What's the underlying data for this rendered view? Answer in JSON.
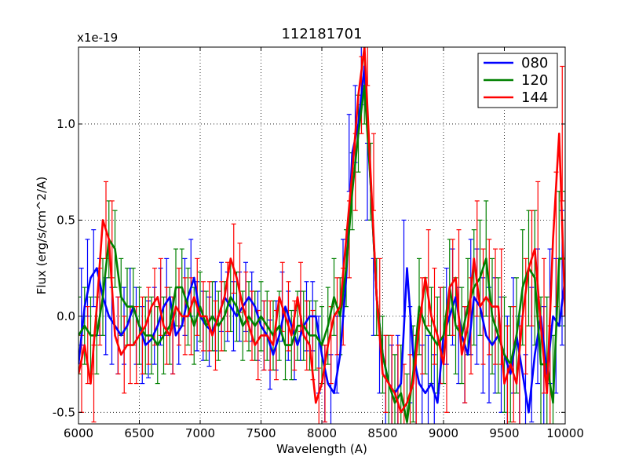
{
  "chart_data": {
    "type": "line",
    "title": "112181701",
    "xlabel": "Wavelength (A)",
    "ylabel": "Flux (erg/s/cm^2/A)",
    "y_multiplier": "x1e-19",
    "xlim": [
      6000,
      10000
    ],
    "ylim": [
      -0.56,
      1.4
    ],
    "xticks": [
      6000,
      6500,
      7000,
      7500,
      8000,
      8500,
      9000,
      9500,
      10000
    ],
    "xtick_labels": [
      "6000",
      "6500",
      "7000",
      "7500",
      "8000",
      "8500",
      "9000",
      "9500",
      "10000"
    ],
    "yticks": [
      -0.5,
      0.0,
      0.5,
      1.0
    ],
    "ytick_labels": [
      "-0.5",
      "0.0",
      "0.5",
      "1.0"
    ],
    "grid": true,
    "legend_position": "top-right",
    "x": [
      6000,
      6050,
      6100,
      6150,
      6200,
      6250,
      6300,
      6350,
      6400,
      6450,
      6500,
      6550,
      6600,
      6650,
      6700,
      6750,
      6800,
      6850,
      6900,
      6950,
      7000,
      7050,
      7100,
      7150,
      7200,
      7250,
      7300,
      7350,
      7400,
      7450,
      7500,
      7550,
      7600,
      7650,
      7700,
      7750,
      7800,
      7850,
      7900,
      7950,
      8000,
      8050,
      8100,
      8150,
      8200,
      8250,
      8300,
      8350,
      8400,
      8450,
      8500,
      8550,
      8600,
      8650,
      8700,
      8750,
      8800,
      8850,
      8900,
      8950,
      9000,
      9050,
      9100,
      9150,
      9200,
      9250,
      9300,
      9350,
      9400,
      9450,
      9500,
      9550,
      9600,
      9650,
      9700,
      9750,
      9800,
      9850,
      9900,
      9950,
      10000
    ],
    "series": [
      {
        "name": "080",
        "color": "#0000ff",
        "values": [
          -0.25,
          0.05,
          0.2,
          0.25,
          0.1,
          0.0,
          -0.05,
          -0.1,
          -0.05,
          0.05,
          -0.05,
          -0.15,
          -0.12,
          -0.05,
          0.05,
          0.1,
          -0.1,
          -0.05,
          0.1,
          0.2,
          0.0,
          -0.05,
          -0.08,
          0.0,
          0.1,
          0.05,
          0.0,
          0.05,
          0.1,
          0.05,
          -0.05,
          -0.1,
          -0.2,
          -0.1,
          0.05,
          -0.05,
          -0.15,
          -0.05,
          0.0,
          0.0,
          -0.2,
          -0.35,
          -0.4,
          -0.2,
          0.2,
          0.85,
          1.0,
          1.3,
          0.7,
          0.1,
          -0.2,
          -0.35,
          -0.4,
          -0.35,
          0.25,
          -0.2,
          -0.35,
          -0.4,
          -0.35,
          -0.45,
          -0.1,
          0.0,
          0.1,
          -0.1,
          -0.2,
          0.1,
          0.05,
          -0.1,
          -0.15,
          -0.1,
          -0.2,
          -0.3,
          -0.1,
          -0.3,
          -0.5,
          -0.2,
          0.0,
          -0.3,
          0.0,
          -0.05,
          0.2
        ],
        "errors": [
          0.2,
          0.2,
          0.2,
          0.2,
          0.2,
          0.2,
          0.2,
          0.2,
          0.2,
          0.2,
          0.2,
          0.2,
          0.2,
          0.2,
          0.2,
          0.2,
          0.2,
          0.2,
          0.2,
          0.2,
          0.18,
          0.18,
          0.18,
          0.18,
          0.18,
          0.18,
          0.18,
          0.18,
          0.18,
          0.18,
          0.18,
          0.18,
          0.18,
          0.18,
          0.18,
          0.18,
          0.18,
          0.18,
          0.18,
          0.18,
          0.2,
          0.2,
          0.2,
          0.2,
          0.2,
          0.2,
          0.2,
          0.2,
          0.2,
          0.2,
          0.2,
          0.25,
          0.25,
          0.25,
          0.25,
          0.25,
          0.25,
          0.25,
          0.25,
          0.25,
          0.25,
          0.25,
          0.25,
          0.25,
          0.25,
          0.3,
          0.3,
          0.3,
          0.3,
          0.3,
          0.3,
          0.3,
          0.3,
          0.3,
          0.3,
          0.35,
          0.35,
          0.35,
          0.35,
          0.35,
          0.35
        ]
      },
      {
        "name": "120",
        "color": "#008000",
        "values": [
          -0.1,
          -0.05,
          -0.1,
          -0.1,
          0.1,
          0.4,
          0.35,
          0.1,
          0.05,
          0.05,
          -0.05,
          -0.1,
          -0.1,
          -0.15,
          -0.1,
          -0.05,
          0.15,
          0.15,
          0.05,
          -0.05,
          0.05,
          -0.05,
          0.0,
          -0.05,
          0.0,
          0.1,
          0.05,
          -0.05,
          0.0,
          -0.05,
          0.0,
          -0.05,
          -0.1,
          -0.05,
          -0.15,
          -0.15,
          -0.05,
          -0.05,
          -0.1,
          -0.1,
          -0.15,
          -0.05,
          0.1,
          0.0,
          0.25,
          0.65,
          0.95,
          1.2,
          0.7,
          0.1,
          -0.2,
          -0.35,
          -0.45,
          -0.4,
          -0.55,
          -0.3,
          0.05,
          -0.05,
          -0.1,
          -0.15,
          -0.1,
          0.15,
          -0.05,
          -0.1,
          0.05,
          0.15,
          0.2,
          0.3,
          0.0,
          -0.1,
          -0.2,
          -0.25,
          -0.1,
          0.15,
          0.25,
          0.2,
          -0.25,
          -0.25,
          -0.45,
          0.3,
          0.3
        ],
        "errors": [
          0.2,
          0.2,
          0.2,
          0.2,
          0.2,
          0.2,
          0.2,
          0.2,
          0.2,
          0.2,
          0.2,
          0.2,
          0.2,
          0.2,
          0.2,
          0.2,
          0.2,
          0.2,
          0.2,
          0.2,
          0.18,
          0.18,
          0.18,
          0.18,
          0.18,
          0.18,
          0.18,
          0.18,
          0.18,
          0.18,
          0.18,
          0.18,
          0.18,
          0.18,
          0.18,
          0.18,
          0.18,
          0.18,
          0.18,
          0.18,
          0.2,
          0.2,
          0.2,
          0.2,
          0.2,
          0.2,
          0.2,
          0.2,
          0.2,
          0.2,
          0.2,
          0.25,
          0.25,
          0.25,
          0.25,
          0.25,
          0.25,
          0.25,
          0.25,
          0.25,
          0.25,
          0.25,
          0.25,
          0.25,
          0.25,
          0.3,
          0.3,
          0.3,
          0.3,
          0.3,
          0.3,
          0.3,
          0.3,
          0.3,
          0.3,
          0.35,
          0.35,
          0.35,
          0.35,
          0.35,
          0.35
        ]
      },
      {
        "name": "144",
        "color": "#ff0000",
        "values": [
          -0.3,
          -0.15,
          -0.35,
          0.05,
          0.5,
          0.4,
          -0.1,
          -0.2,
          -0.15,
          -0.15,
          -0.1,
          -0.05,
          0.05,
          0.1,
          -0.05,
          -0.1,
          0.05,
          0.0,
          0.0,
          0.1,
          0.0,
          0.0,
          -0.1,
          0.0,
          0.1,
          0.3,
          0.2,
          0.05,
          -0.05,
          -0.15,
          -0.1,
          -0.1,
          -0.15,
          0.1,
          0.0,
          -0.1,
          0.1,
          -0.1,
          -0.15,
          -0.45,
          -0.35,
          -0.15,
          0.0,
          0.05,
          0.4,
          0.75,
          1.15,
          1.4,
          0.75,
          0.1,
          -0.3,
          -0.35,
          -0.4,
          -0.5,
          -0.45,
          -0.35,
          -0.05,
          0.2,
          0.0,
          -0.1,
          -0.25,
          0.15,
          0.2,
          -0.2,
          -0.05,
          0.3,
          0.05,
          0.1,
          0.05,
          0.05,
          -0.35,
          -0.25,
          -0.35,
          0.0,
          0.25,
          0.35,
          -0.05,
          -0.4,
          0.4,
          0.95,
          0.0
        ],
        "errors": [
          0.2,
          0.2,
          0.2,
          0.2,
          0.2,
          0.2,
          0.2,
          0.2,
          0.2,
          0.2,
          0.2,
          0.2,
          0.2,
          0.2,
          0.2,
          0.2,
          0.2,
          0.2,
          0.2,
          0.2,
          0.18,
          0.18,
          0.18,
          0.18,
          0.18,
          0.18,
          0.18,
          0.18,
          0.18,
          0.18,
          0.18,
          0.18,
          0.18,
          0.18,
          0.18,
          0.18,
          0.18,
          0.18,
          0.18,
          0.18,
          0.2,
          0.2,
          0.2,
          0.2,
          0.2,
          0.2,
          0.2,
          0.2,
          0.2,
          0.2,
          0.2,
          0.25,
          0.25,
          0.25,
          0.25,
          0.25,
          0.25,
          0.25,
          0.25,
          0.25,
          0.25,
          0.25,
          0.25,
          0.25,
          0.25,
          0.3,
          0.3,
          0.3,
          0.3,
          0.3,
          0.3,
          0.3,
          0.3,
          0.3,
          0.3,
          0.35,
          0.35,
          0.35,
          0.35,
          0.35,
          0.35
        ]
      }
    ]
  }
}
